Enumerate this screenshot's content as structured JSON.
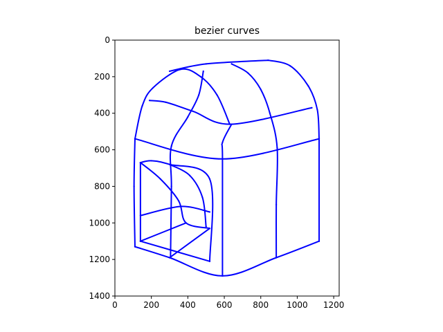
{
  "chart_data": {
    "type": "line",
    "title": "bezier curves",
    "xlabel": "",
    "ylabel": "",
    "xlim": [
      0,
      1230
    ],
    "ylim": [
      1400,
      0
    ],
    "y_inverted": true,
    "x_ticks": [
      0,
      200,
      400,
      600,
      800,
      1000,
      1200
    ],
    "y_ticks": [
      0,
      200,
      400,
      600,
      800,
      1000,
      1200,
      1400
    ],
    "x_tick_labels": [
      "0",
      "200",
      "400",
      "600",
      "800",
      "1000",
      "1200"
    ],
    "y_tick_labels": [
      "0",
      "200",
      "400",
      "600",
      "800",
      "1000",
      "1200",
      "1400"
    ],
    "grid": false,
    "line_color": "#0000ff",
    "series": [
      {
        "points": [
          [
            110,
            540
          ],
          [
            150,
            360
          ],
          [
            210,
            260
          ],
          [
            360,
            160
          ],
          [
            470,
            200
          ],
          [
            560,
            300
          ],
          [
            630,
            460
          ]
        ]
      },
      {
        "points": [
          [
            300,
            170
          ],
          [
            500,
            130
          ],
          [
            840,
            110
          ]
        ]
      },
      {
        "points": [
          [
            840,
            110
          ],
          [
            960,
            140
          ],
          [
            1060,
            250
          ],
          [
            1110,
            380
          ],
          [
            1120,
            540
          ]
        ]
      },
      {
        "points": [
          [
            640,
            130
          ],
          [
            730,
            180
          ],
          [
            800,
            270
          ],
          [
            850,
            400
          ],
          [
            890,
            590
          ],
          [
            885,
            900
          ],
          [
            885,
            1190
          ]
        ]
      },
      {
        "points": [
          [
            485,
            170
          ],
          [
            460,
            300
          ],
          [
            400,
            420
          ],
          [
            310,
            580
          ],
          [
            310,
            800
          ],
          [
            305,
            1190
          ]
        ]
      },
      {
        "points": [
          [
            190,
            330
          ],
          [
            280,
            340
          ],
          [
            430,
            390
          ],
          [
            640,
            460
          ],
          [
            1080,
            370
          ]
        ]
      },
      {
        "points": [
          [
            640,
            460
          ],
          [
            590,
            560
          ],
          [
            590,
            650
          ],
          [
            590,
            1290
          ]
        ]
      },
      {
        "points": [
          [
            110,
            540
          ],
          [
            590,
            650
          ],
          [
            1120,
            540
          ]
        ]
      },
      {
        "points": [
          [
            1120,
            540
          ],
          [
            1120,
            1100
          ]
        ]
      },
      {
        "points": [
          [
            1120,
            1100
          ],
          [
            885,
            1190
          ],
          [
            590,
            1290
          ],
          [
            300,
            1190
          ],
          [
            110,
            1130
          ]
        ]
      },
      {
        "points": [
          [
            110,
            540
          ],
          [
            105,
            800
          ],
          [
            110,
            1130
          ]
        ]
      },
      {
        "points": [
          [
            140,
            670
          ],
          [
            140,
            1100
          ]
        ]
      },
      {
        "points": [
          [
            140,
            670
          ],
          [
            200,
            660
          ],
          [
            300,
            680
          ],
          [
            520,
            760
          ],
          [
            520,
            1210
          ]
        ]
      },
      {
        "points": [
          [
            140,
            1100
          ],
          [
            520,
            1210
          ]
        ]
      },
      {
        "points": [
          [
            140,
            670
          ],
          [
            250,
            760
          ],
          [
            350,
            880
          ],
          [
            390,
            1000
          ],
          [
            520,
            1030
          ]
        ]
      },
      {
        "points": [
          [
            300,
            680
          ],
          [
            410,
            740
          ],
          [
            480,
            860
          ],
          [
            500,
            1020
          ]
        ]
      },
      {
        "points": [
          [
            140,
            960
          ],
          [
            360,
            910
          ],
          [
            520,
            940
          ]
        ]
      },
      {
        "points": [
          [
            140,
            1100
          ],
          [
            390,
            1000
          ]
        ]
      },
      {
        "points": [
          [
            300,
            1190
          ],
          [
            520,
            1030
          ]
        ]
      }
    ]
  }
}
